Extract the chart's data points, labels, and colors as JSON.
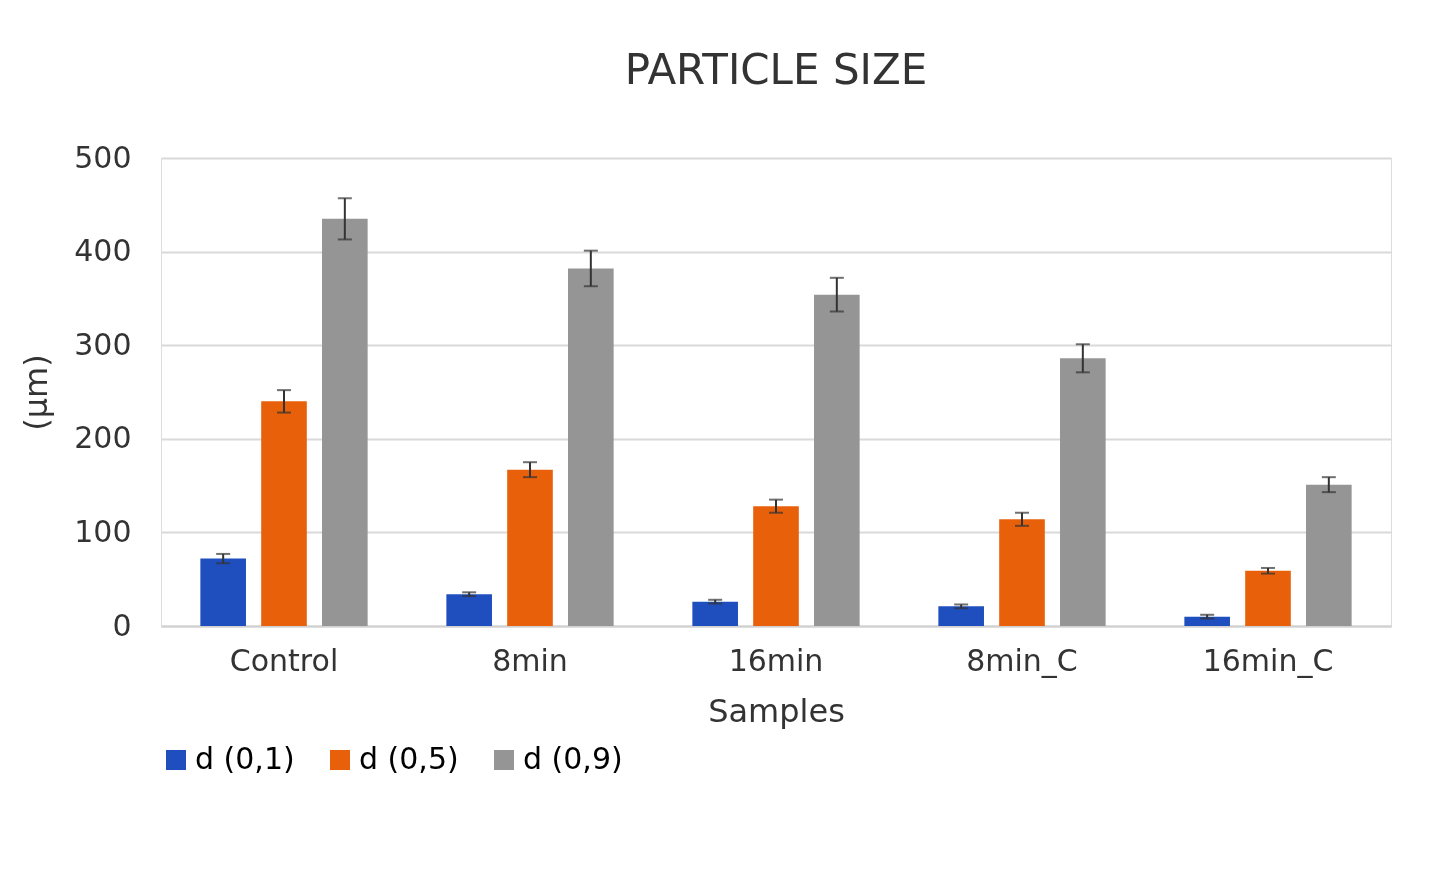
{
  "chart_data": {
    "type": "bar",
    "title": "PARTICLE SIZE",
    "xlabel": "Samples",
    "ylabel": "(µm)",
    "categories": [
      "Control",
      "8min",
      "16min",
      "8min_C",
      "16min_C"
    ],
    "series": [
      {
        "name": "d (0,1)",
        "color": "#1f4fbf",
        "values": [
          72,
          34,
          26,
          21,
          10
        ],
        "errors": [
          5,
          2,
          2,
          2,
          2
        ]
      },
      {
        "name": "d (0,5)",
        "color": "#e8600a",
        "values": [
          240,
          167,
          128,
          114,
          59
        ],
        "errors": [
          12,
          8,
          7,
          7,
          3
        ]
      },
      {
        "name": "d (0,9)",
        "color": "#959595",
        "values": [
          435,
          382,
          354,
          286,
          151
        ],
        "errors": [
          22,
          19,
          18,
          15,
          8
        ]
      }
    ],
    "ylim": [
      0,
      500
    ],
    "yticks": [
      0,
      100,
      200,
      300,
      400,
      500
    ],
    "grid": "y",
    "legend": "bottom"
  }
}
